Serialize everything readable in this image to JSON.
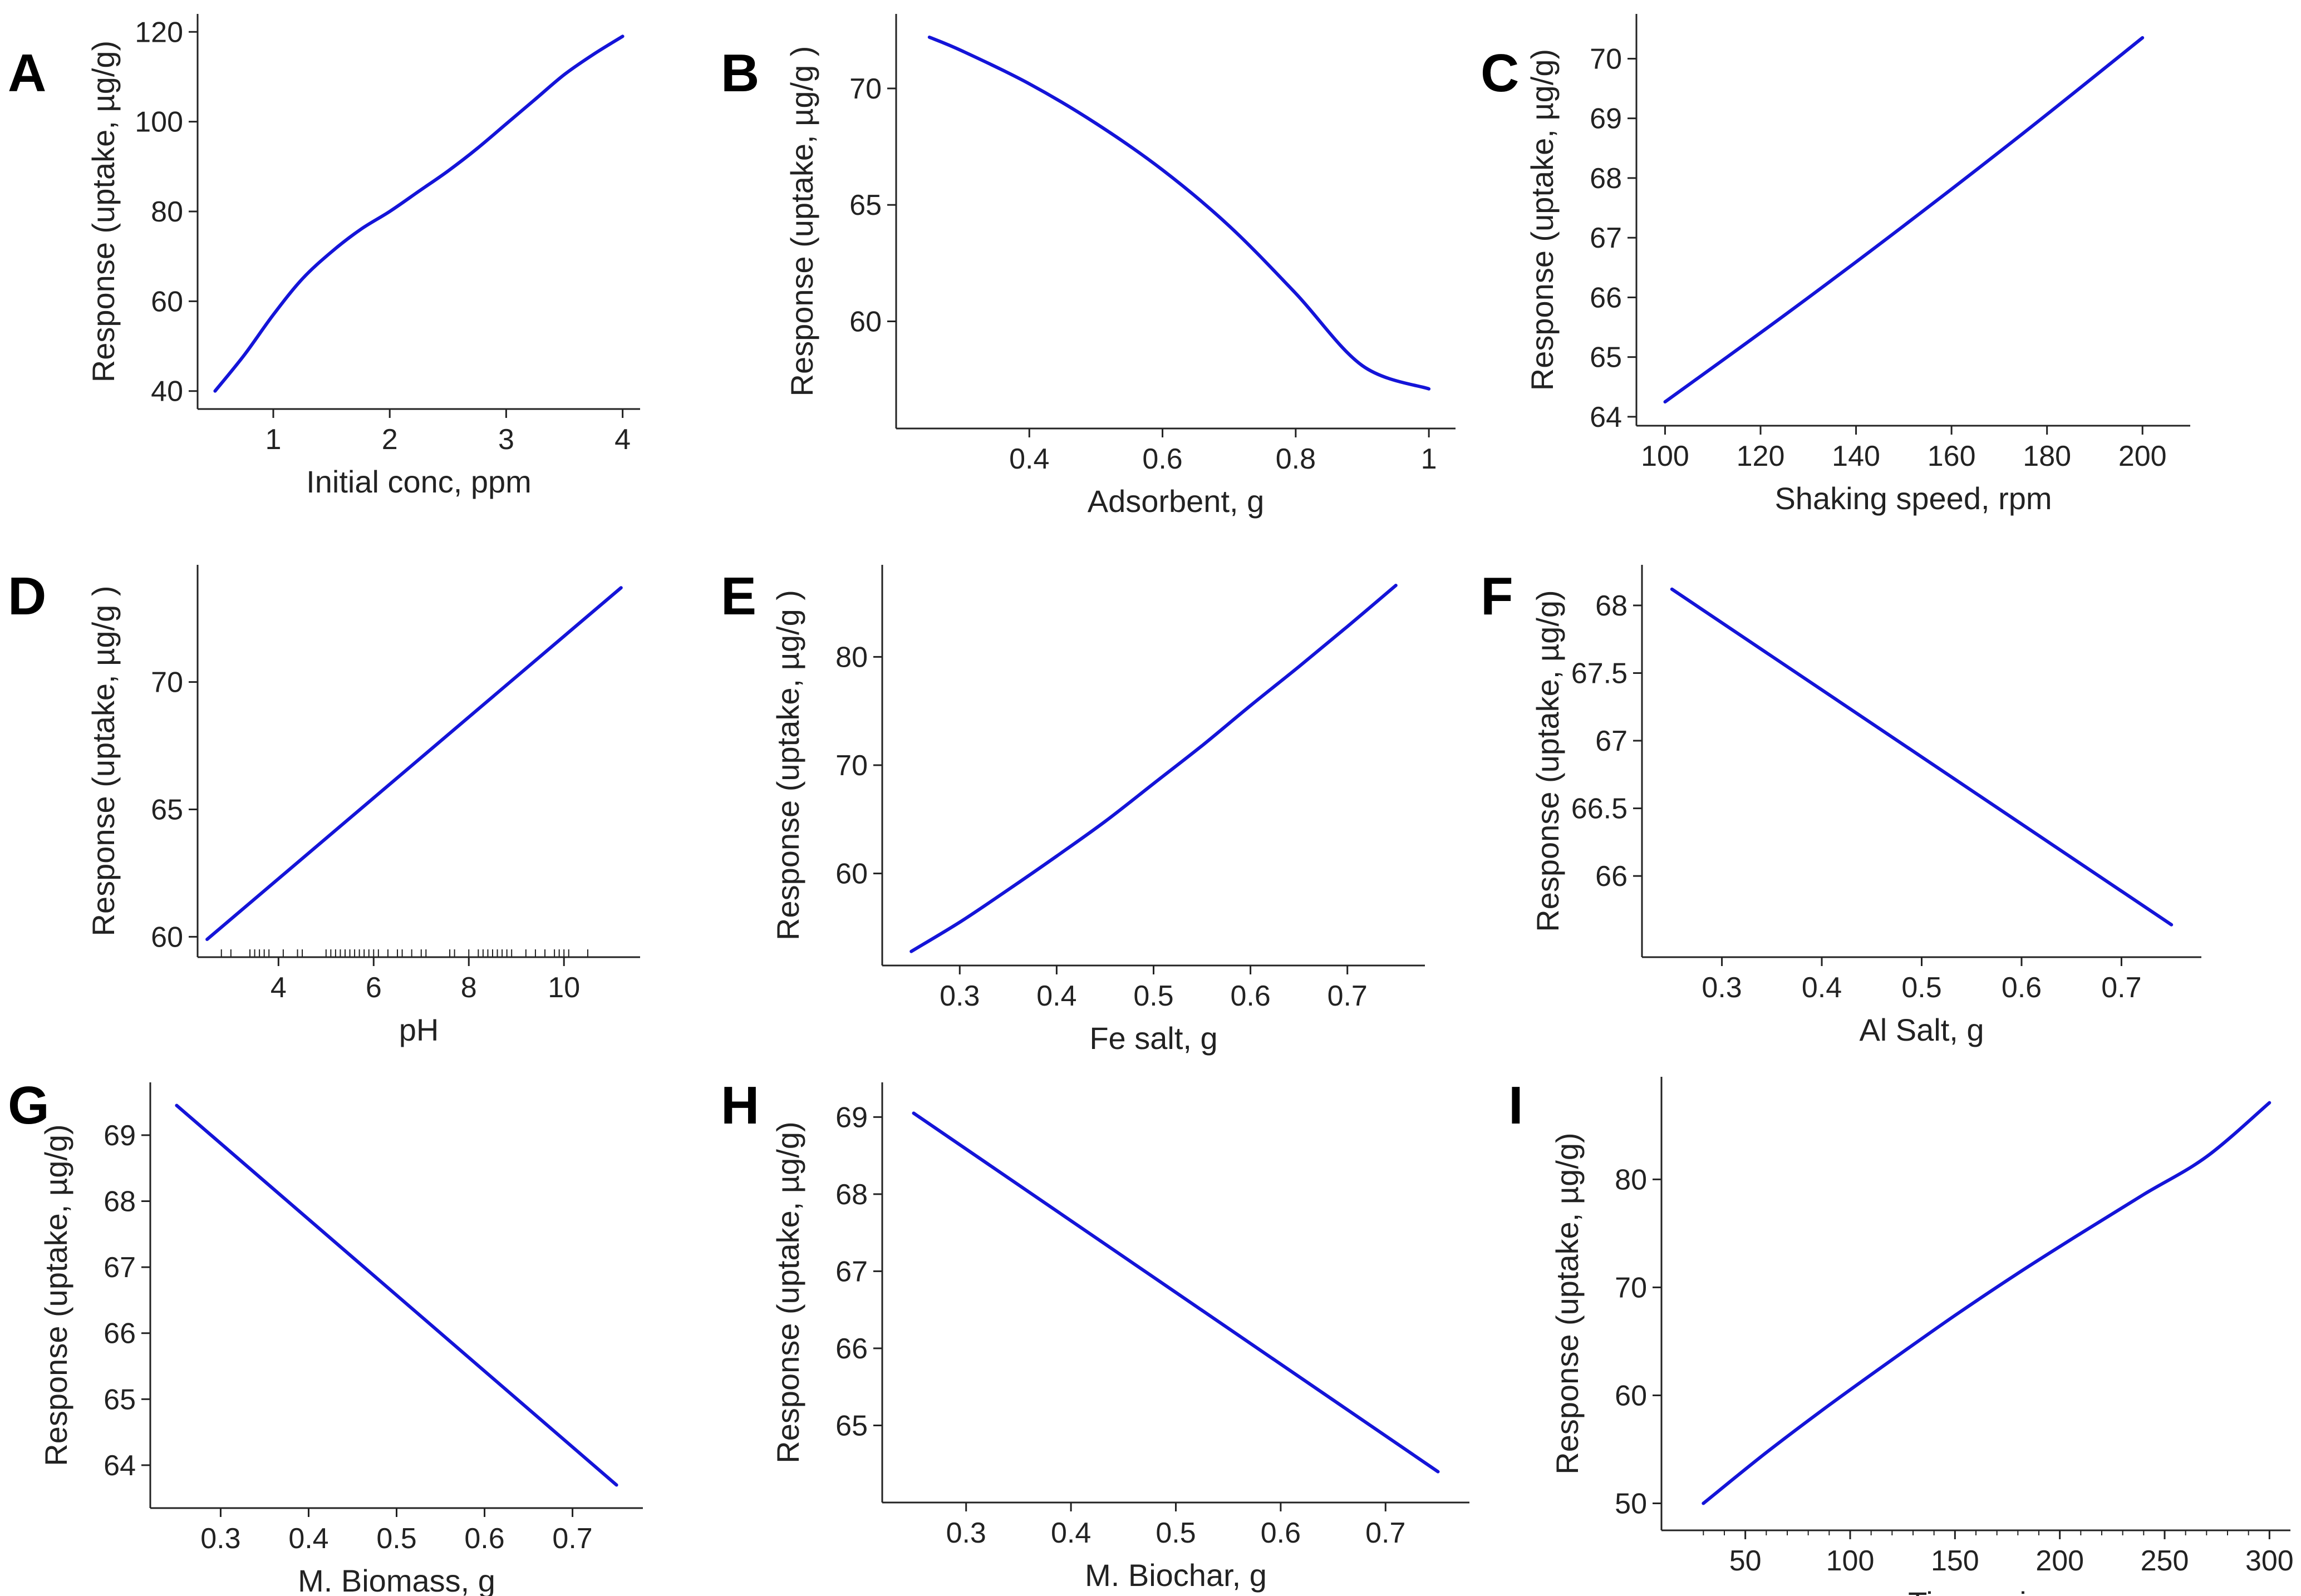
{
  "colors": {
    "line": "#1414d8",
    "axis": "#222222",
    "text": "#222222"
  },
  "chart_data": [
    {
      "panel": "A",
      "type": "line",
      "xlabel": "Initial conc, ppm",
      "ylabel": "Response (uptake, µg/g)",
      "xlim": [
        0.35,
        4.15
      ],
      "ylim": [
        36,
        124
      ],
      "xticks": [
        1,
        2,
        3,
        4
      ],
      "yticks": [
        40,
        60,
        80,
        100,
        120
      ],
      "minor_xticks": [],
      "rug": [],
      "x": [
        0.5,
        0.75,
        1.0,
        1.25,
        1.5,
        1.75,
        2.0,
        2.25,
        2.5,
        2.75,
        3.0,
        3.25,
        3.5,
        3.75,
        4.0
      ],
      "y": [
        40,
        48,
        57,
        65,
        71,
        76,
        80,
        84.5,
        89,
        94,
        99.5,
        105,
        110.5,
        115,
        119
      ]
    },
    {
      "panel": "B",
      "type": "line",
      "xlabel": "Adsorbent, g",
      "ylabel": "Response (uptake, µg/g )",
      "xlim": [
        0.2,
        1.04
      ],
      "ylim": [
        55.4,
        73.2
      ],
      "xticks": [
        0.4,
        0.6,
        0.8,
        1
      ],
      "yticks": [
        60,
        65,
        70
      ],
      "minor_xticks": [],
      "rug": [],
      "x": [
        0.25,
        0.3,
        0.4,
        0.5,
        0.6,
        0.7,
        0.8,
        0.9,
        1.0
      ],
      "y": [
        72.2,
        71.6,
        70.2,
        68.5,
        66.5,
        64.1,
        61.2,
        58.1,
        57.1
      ]
    },
    {
      "panel": "C",
      "type": "line",
      "xlabel": "Shaking speed, rpm",
      "ylabel": "Response (uptake, µg/g)",
      "xlim": [
        94,
        210
      ],
      "ylim": [
        63.85,
        70.75
      ],
      "xticks": [
        100,
        120,
        140,
        160,
        180,
        200
      ],
      "yticks": [
        64,
        65,
        66,
        67,
        68,
        69,
        70
      ],
      "minor_xticks": [],
      "rug": [],
      "x": [
        100,
        125,
        150,
        175,
        200
      ],
      "y": [
        64.25,
        65.7,
        67.2,
        68.75,
        70.35
      ]
    },
    {
      "panel": "D",
      "type": "line",
      "xlabel": "pH",
      "ylabel": "Response (uptake, µg/g )",
      "xlim": [
        2.3,
        11.6
      ],
      "ylim": [
        59.2,
        74.6
      ],
      "xticks": [
        4,
        6,
        8,
        10
      ],
      "yticks": [
        60,
        65,
        70
      ],
      "minor_xticks": [],
      "rug": [
        2.8,
        3.0,
        3.4,
        3.5,
        3.6,
        3.7,
        3.8,
        4.1,
        4.4,
        4.5,
        5.0,
        5.1,
        5.2,
        5.3,
        5.4,
        5.5,
        5.6,
        5.7,
        5.8,
        5.9,
        6.0,
        6.1,
        6.3,
        6.5,
        6.6,
        6.8,
        7.0,
        7.1,
        7.6,
        7.7,
        8.0,
        8.2,
        8.3,
        8.4,
        8.5,
        8.6,
        8.7,
        8.8,
        8.9,
        9.2,
        9.4,
        9.6,
        9.8,
        9.9,
        10.0,
        10.1,
        10.5
      ],
      "x": [
        2.5,
        11.2
      ],
      "y": [
        59.9,
        73.7
      ]
    },
    {
      "panel": "E",
      "type": "line",
      "xlabel": "Fe salt, g",
      "ylabel": "Response (uptake, µg/g )",
      "xlim": [
        0.22,
        0.78
      ],
      "ylim": [
        51.5,
        88.5
      ],
      "xticks": [
        0.3,
        0.4,
        0.5,
        0.6,
        0.7
      ],
      "yticks": [
        60,
        70,
        80
      ],
      "minor_xticks": [],
      "rug": [],
      "x": [
        0.25,
        0.3,
        0.35,
        0.4,
        0.45,
        0.5,
        0.55,
        0.6,
        0.65,
        0.7,
        0.75
      ],
      "y": [
        52.8,
        55.5,
        58.5,
        61.6,
        64.8,
        68.3,
        71.8,
        75.5,
        79.1,
        82.8,
        86.6
      ]
    },
    {
      "panel": "F",
      "type": "line",
      "xlabel": "Al Salt, g",
      "ylabel": "Response (uptake, µg/g)",
      "xlim": [
        0.22,
        0.78
      ],
      "ylim": [
        65.4,
        68.3
      ],
      "xticks": [
        0.3,
        0.4,
        0.5,
        0.6,
        0.7
      ],
      "yticks": [
        66,
        66.5,
        67,
        67.5,
        68
      ],
      "minor_xticks": [],
      "rug": [],
      "x": [
        0.25,
        0.75
      ],
      "y": [
        68.12,
        65.64
      ]
    },
    {
      "panel": "G",
      "type": "line",
      "xlabel": "M. Biomass, g",
      "ylabel": "Response (uptake, µg/g)",
      "xlim": [
        0.22,
        0.78
      ],
      "ylim": [
        63.35,
        69.8
      ],
      "xticks": [
        0.3,
        0.4,
        0.5,
        0.6,
        0.7
      ],
      "yticks": [
        64,
        65,
        66,
        67,
        68,
        69
      ],
      "minor_xticks": [],
      "rug": [],
      "x": [
        0.25,
        0.75
      ],
      "y": [
        69.45,
        63.7
      ]
    },
    {
      "panel": "H",
      "type": "line",
      "xlabel": "M. Biochar, g",
      "ylabel": "Response (uptake, µg/g)",
      "xlim": [
        0.22,
        0.78
      ],
      "ylim": [
        64.0,
        69.45
      ],
      "xticks": [
        0.3,
        0.4,
        0.5,
        0.6,
        0.7
      ],
      "yticks": [
        65,
        66,
        67,
        68,
        69
      ],
      "minor_xticks": [],
      "rug": [],
      "x": [
        0.25,
        0.75
      ],
      "y": [
        69.05,
        64.4
      ]
    },
    {
      "panel": "I",
      "type": "line",
      "xlabel": "Time, min",
      "ylabel": "Response (uptake, µg/g)",
      "xlim": [
        10,
        310
      ],
      "ylim": [
        47.5,
        89.5
      ],
      "xticks": [
        50,
        100,
        150,
        200,
        250,
        300
      ],
      "yticks": [
        50,
        60,
        70,
        80
      ],
      "minor_xticks": [
        30,
        40,
        60,
        70,
        80,
        90,
        110,
        120,
        130,
        140,
        160,
        170,
        180,
        190,
        210,
        220,
        230,
        240,
        260,
        270,
        280,
        290
      ],
      "rug": [],
      "x": [
        30,
        60,
        90,
        120,
        150,
        180,
        210,
        240,
        270,
        300
      ],
      "y": [
        50.0,
        54.7,
        59.1,
        63.3,
        67.4,
        71.3,
        75.0,
        78.6,
        82.1,
        87.1
      ]
    }
  ]
}
